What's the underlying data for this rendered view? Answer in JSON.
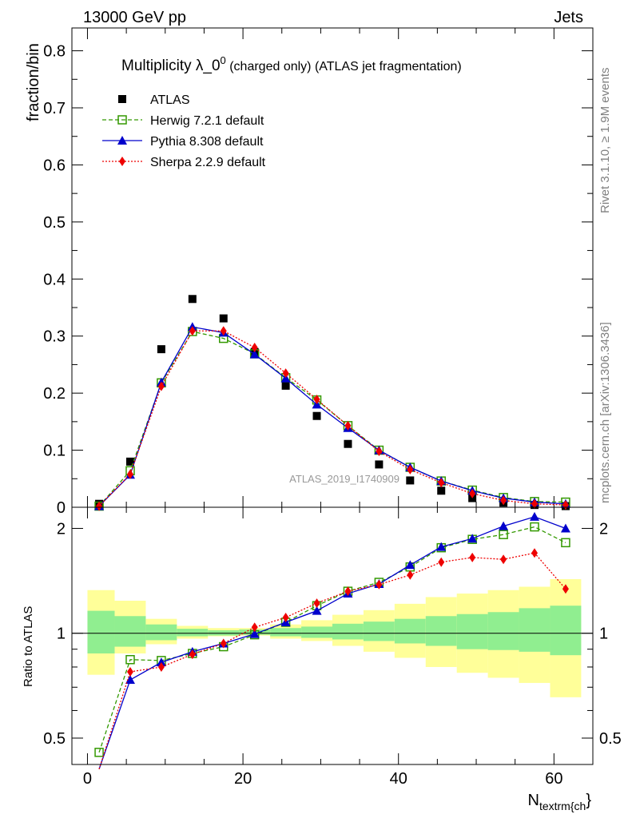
{
  "header": {
    "left": "13000 GeV pp",
    "right": "Jets"
  },
  "side_text": {
    "rivet": "Rivet 3.1.10, ≥ 1.9M events",
    "mcplots": "mcplots.cern.ch [arXiv:1306.3436]"
  },
  "chart_data": {
    "type": "line",
    "title_main": "Multiplicity λ_0",
    "title_sup": "0",
    "title_tail": " (charged only) (ATLAS jet fragmentation)",
    "analysis_id": "ATLAS_2019_I1740909",
    "xlabel": "N",
    "xlabel_sub": "textrm{ch",
    "xlabel_end": "}",
    "ylabel_top": "fraction/bin",
    "ylabel_bottom": "Ratio to ATLAS",
    "xlim": [
      -2,
      65
    ],
    "ylim_top": [
      0,
      0.84
    ],
    "ylim_bottom_log": [
      0.42,
      2.3
    ],
    "x_ticks": [
      0,
      20,
      40,
      60
    ],
    "x_tick_labels": [
      "0",
      "20",
      "40",
      "60"
    ],
    "y_ticks_top": [
      0,
      0.1,
      0.2,
      0.3,
      0.4,
      0.5,
      0.6,
      0.7,
      0.8
    ],
    "y_tick_labels_top": [
      "0",
      "0.1",
      "0.2",
      "0.3",
      "0.4",
      "0.5",
      "0.6",
      "0.7",
      "0.8"
    ],
    "y_ticks_bottom": [
      0.5,
      1,
      2
    ],
    "y_tick_labels_bottom": [
      "0.5",
      "1",
      "2"
    ],
    "x": [
      1.5,
      5.5,
      9.5,
      13.5,
      17.5,
      21.5,
      25.5,
      29.5,
      33.5,
      37.5,
      41.5,
      45.5,
      49.5,
      53.5,
      57.5,
      61.5
    ],
    "series": [
      {
        "name": "ATLAS",
        "style": "data",
        "color": "#000000",
        "values": [
          0.006,
          0.08,
          0.277,
          0.365,
          0.331,
          0.272,
          0.213,
          0.16,
          0.111,
          0.075,
          0.047,
          0.029,
          0.016,
          0.008,
          0.004,
          0.002
        ],
        "ratio": [
          1,
          1,
          1,
          1,
          1,
          1,
          1,
          1,
          1,
          1,
          1,
          1,
          1,
          1,
          1,
          1
        ]
      },
      {
        "name": "Herwig 7.2.1 default",
        "style": "dashed",
        "marker": "open-square",
        "color": "#339900",
        "values": [
          0.002,
          0.064,
          0.218,
          0.308,
          0.296,
          0.269,
          0.227,
          0.188,
          0.143,
          0.1,
          0.07,
          0.046,
          0.03,
          0.017,
          0.01,
          0.009
        ],
        "ratio": [
          0.455,
          0.84,
          0.835,
          0.875,
          0.915,
          0.99,
          1.075,
          1.2,
          1.32,
          1.4,
          1.55,
          1.76,
          1.86,
          1.92,
          2.02,
          1.82
        ]
      },
      {
        "name": "Pythia 8.308 default",
        "style": "solid",
        "marker": "filled-triangle",
        "color": "#0000cc",
        "values": [
          0.002,
          0.057,
          0.219,
          0.316,
          0.306,
          0.268,
          0.226,
          0.18,
          0.139,
          0.1,
          0.07,
          0.046,
          0.029,
          0.016,
          0.009,
          0.006
        ],
        "ratio": [
          0.4,
          0.735,
          0.825,
          0.885,
          0.935,
          0.995,
          1.075,
          1.16,
          1.3,
          1.385,
          1.57,
          1.77,
          1.87,
          2.03,
          2.16,
          2.0
        ]
      },
      {
        "name": "Sherpa 2.2.9 default",
        "style": "dotted",
        "marker": "filled-diamond",
        "color": "#ee0000",
        "values": [
          0.002,
          0.058,
          0.212,
          0.309,
          0.309,
          0.28,
          0.235,
          0.189,
          0.143,
          0.098,
          0.066,
          0.043,
          0.024,
          0.012,
          0.006,
          0.004
        ],
        "ratio": [
          0.4,
          0.775,
          0.8,
          0.87,
          0.935,
          1.04,
          1.11,
          1.22,
          1.32,
          1.38,
          1.47,
          1.6,
          1.65,
          1.63,
          1.7,
          1.34
        ]
      }
    ],
    "bands": {
      "edges": [
        0,
        3.5,
        7.5,
        11.5,
        15.5,
        19.5,
        23.5,
        27.5,
        31.5,
        35.5,
        39.5,
        43.5,
        47.5,
        51.5,
        55.5,
        59.5,
        63.5
      ],
      "inner_low": [
        0.875,
        0.915,
        0.955,
        0.98,
        0.985,
        0.99,
        0.98,
        0.97,
        0.96,
        0.95,
        0.935,
        0.92,
        0.9,
        0.895,
        0.885,
        0.865
      ],
      "inner_high": [
        1.16,
        1.12,
        1.06,
        1.03,
        1.02,
        1.025,
        1.035,
        1.045,
        1.065,
        1.08,
        1.1,
        1.12,
        1.135,
        1.15,
        1.18,
        1.2
      ],
      "outer_low": [
        0.76,
        0.875,
        0.93,
        0.965,
        0.98,
        0.985,
        0.965,
        0.95,
        0.92,
        0.885,
        0.85,
        0.8,
        0.77,
        0.745,
        0.72,
        0.655
      ],
      "outer_high": [
        1.33,
        1.24,
        1.1,
        1.05,
        1.035,
        1.035,
        1.06,
        1.09,
        1.13,
        1.165,
        1.215,
        1.27,
        1.3,
        1.33,
        1.36,
        1.43
      ],
      "inner_color": "#90ee90",
      "outer_color": "#ffff99"
    }
  }
}
